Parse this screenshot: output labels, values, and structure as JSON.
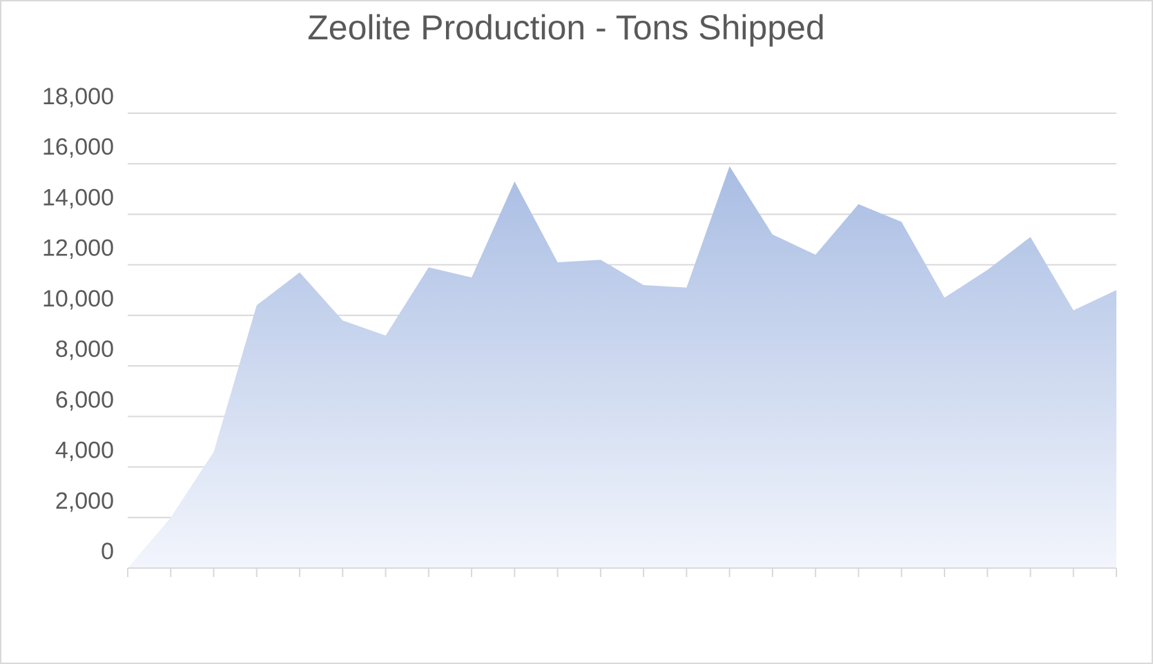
{
  "chart_data": {
    "type": "area",
    "title": "Zeolite Production - Tons Shipped",
    "categories": [
      null,
      null,
      null,
      null,
      null,
      null,
      null,
      null,
      null,
      null,
      null,
      null,
      null,
      null,
      null,
      null,
      null,
      null,
      null,
      null,
      null,
      null,
      null,
      null
    ],
    "values": [
      0,
      2000,
      4600,
      10400,
      11700,
      9800,
      9200,
      11900,
      11500,
      15300,
      12100,
      12200,
      11200,
      11100,
      15900,
      13200,
      12400,
      14400,
      13700,
      10700,
      11800,
      13100,
      10200,
      11000
    ],
    "color": "#a9bde3",
    "ylim": [
      0,
      18000
    ],
    "yticks": [
      0,
      {
        "value": 2000,
        "label": "2,000"
      },
      {
        "value": 4000,
        "label": "4,000"
      },
      {
        "value": 6000,
        "label": "6,000"
      },
      {
        "value": 8000,
        "label": "8,000"
      },
      {
        "value": 10000,
        "label": "10,000"
      },
      {
        "value": 12000,
        "label": "12,000"
      },
      {
        "value": 14000,
        "label": "14,000"
      },
      {
        "value": 16000,
        "label": "16,000"
      },
      {
        "value": 18000,
        "label": "18,000"
      }
    ],
    "grid": true
  }
}
